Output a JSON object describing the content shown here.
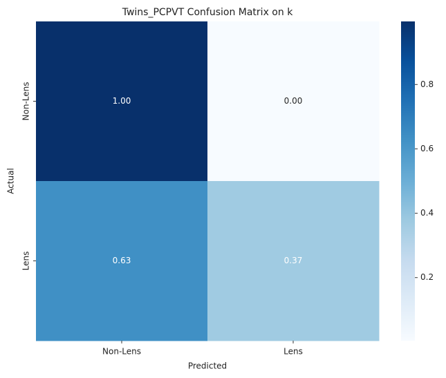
{
  "chart_data": {
    "type": "heatmap",
    "title": "Twins_PCPVT Confusion Matrix on k",
    "x_label": "Predicted",
    "y_label": "Actual",
    "x_categories": [
      "Non-Lens",
      "Lens"
    ],
    "y_categories": [
      "Non-Lens",
      "Lens"
    ],
    "values": [
      [
        0.996,
        0.004
      ],
      [
        0.63,
        0.37
      ]
    ],
    "value_labels": [
      [
        "1.00",
        "0.00"
      ],
      [
        "0.63",
        "0.37"
      ]
    ],
    "colormap": "Blues",
    "clim": [
      0.004,
      0.996
    ],
    "cticks": [
      0.2,
      0.4,
      0.6,
      0.8
    ]
  }
}
